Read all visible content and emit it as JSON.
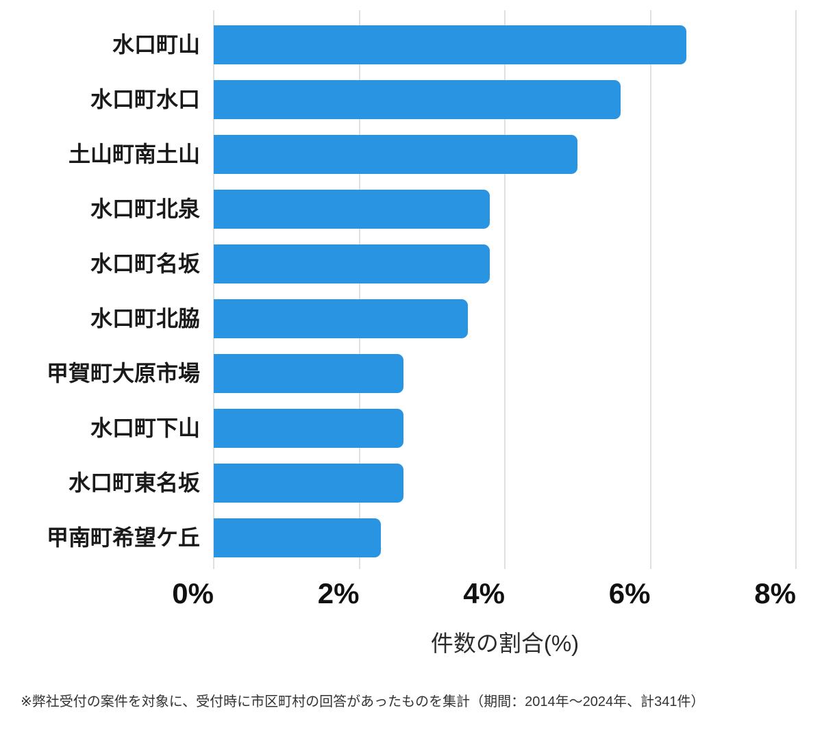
{
  "chart_data": {
    "type": "bar",
    "orientation": "horizontal",
    "title": "",
    "categories": [
      "水口町山",
      "水口町水口",
      "土山町南土山",
      "水口町北泉",
      "水口町名坂",
      "水口町北脇",
      "甲賀町大原市場",
      "水口町下山",
      "水口町東名坂",
      "甲南町希望ケ丘"
    ],
    "values": [
      6.49,
      5.59,
      5.0,
      3.79,
      3.79,
      3.49,
      2.61,
      2.61,
      2.61,
      2.3
    ],
    "unit": "%",
    "xlabel": "件数の割合(%)",
    "ylabel": "",
    "xticks": [
      "0%",
      "2%",
      "4%",
      "6%",
      "8%"
    ],
    "xtick_values": [
      0,
      2,
      4,
      6,
      8
    ],
    "xlim": [
      0,
      8
    ],
    "grid": true,
    "legend": "none",
    "bar_color": "#2994E2",
    "gridline_color": "#e0e0e0"
  },
  "footnote": "※弊社受付の案件を対象に、受付時に市区町村の回答があったものを集計（期間：2014年～2024年、計341件）"
}
